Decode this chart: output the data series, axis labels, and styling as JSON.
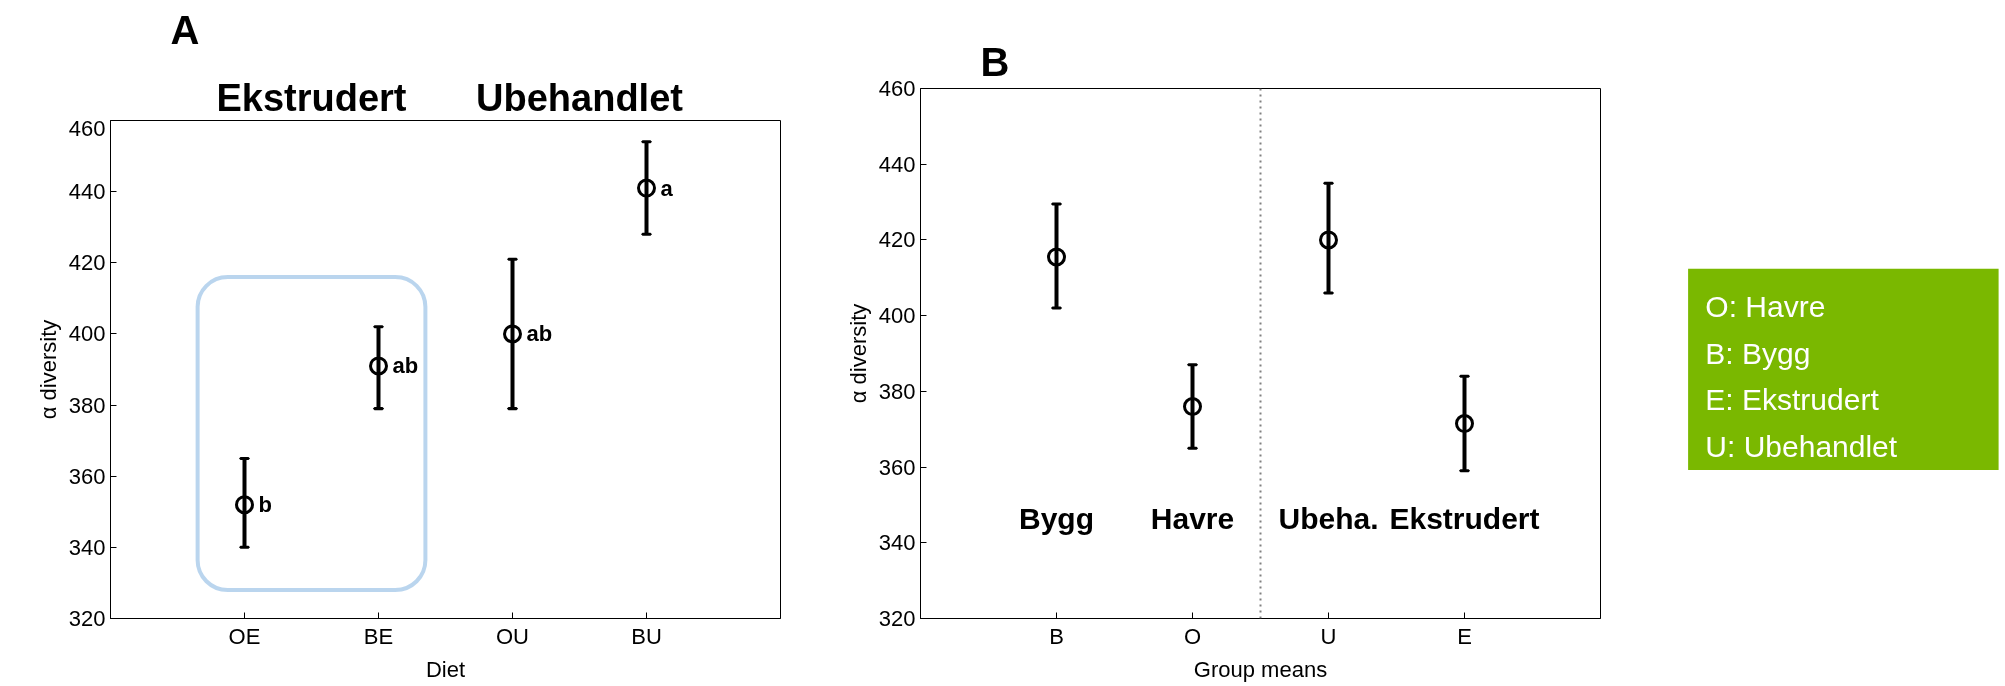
{
  "chart_data": [
    {
      "type": "scatter",
      "title": "A",
      "xlabel": "Diet",
      "ylabel": "α diversity",
      "categories": [
        "OE",
        "BE",
        "OU",
        "BU"
      ],
      "ylim": [
        320,
        460
      ],
      "yticks": [
        320,
        340,
        360,
        380,
        400,
        420,
        440,
        460
      ],
      "series": [
        {
          "color": "#000000",
          "values": [
            352,
            391,
            400,
            441
          ],
          "errors": [
            [
              340,
              365
            ],
            [
              379,
              402
            ],
            [
              379,
              421
            ],
            [
              428,
              454
            ]
          ]
        }
      ],
      "marker": "circle",
      "grid": false,
      "annotations": [
        "Ekstrudert",
        "Ubehandlet",
        {
          "text": "b",
          "x": "OE",
          "y": 352
        },
        {
          "text": "ab",
          "x": "BE",
          "y": 391
        },
        {
          "text": "ab",
          "x": "OU",
          "y": 400
        },
        {
          "text": "a",
          "x": "BU",
          "y": 441
        }
      ]
    },
    {
      "type": "scatter",
      "title": "B",
      "xlabel": "Group means",
      "ylabel": "α diversity",
      "categories": [
        "B",
        "O",
        "U",
        "E"
      ],
      "ylim": [
        320,
        460
      ],
      "yticks": [
        320,
        340,
        360,
        380,
        400,
        420,
        440,
        460
      ],
      "series": [
        {
          "color": "#000000",
          "values": [
            415.5,
            376,
            420,
            371.5
          ],
          "errors": [
            [
              402,
              429.5
            ],
            [
              365,
              387
            ],
            [
              406,
              435
            ],
            [
              359,
              384
            ]
          ]
        }
      ],
      "marker": "circle",
      "grid": false,
      "annotations": [
        "Bygg",
        "Havre",
        "Ubeha.",
        "Ekstrudert"
      ]
    },
    {
      "type": "other",
      "annotations": [
        "O: Havre",
        "B: Bygg",
        "E: Ekstrudert",
        "U: Ubehandlet"
      ]
    }
  ]
}
